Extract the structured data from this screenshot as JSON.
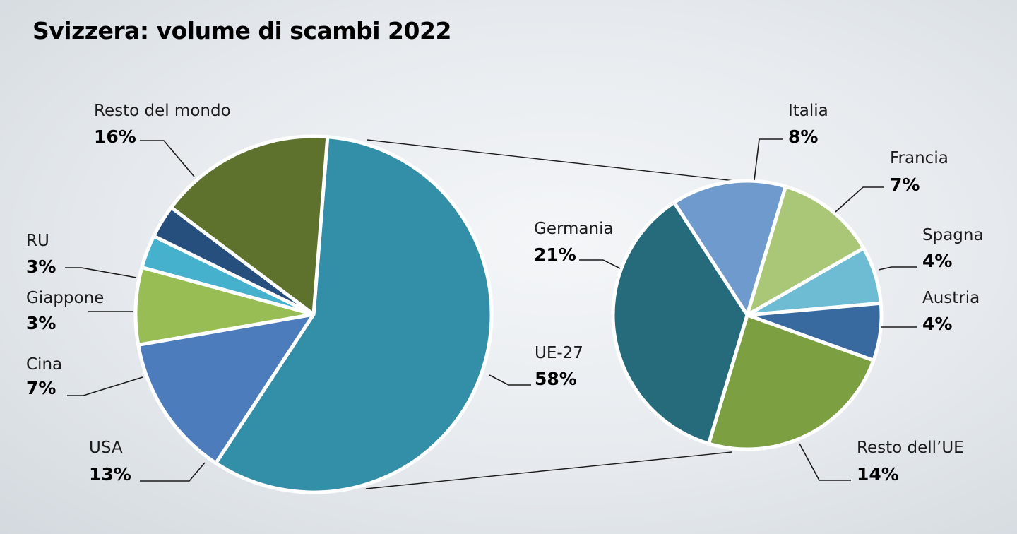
{
  "title": "Svizzera: volume di scambi 2022",
  "chart_data": [
    {
      "type": "pie",
      "slices": [
        {
          "name": "UE-27",
          "value": 58,
          "label": "58%",
          "color": "#338ea7"
        },
        {
          "name": "USA",
          "value": 13,
          "label": "13%",
          "color": "#4c7cbb"
        },
        {
          "name": "Cina",
          "value": 7,
          "label": "7%",
          "color": "#98bd55"
        },
        {
          "name": "Giappone",
          "value": 3,
          "label": "3%",
          "color": "#46b1cd"
        },
        {
          "name": "RU",
          "value": 3,
          "label": "3%",
          "color": "#264f7e"
        },
        {
          "name": "Resto del mondo",
          "value": 16,
          "label": "16%",
          "color": "#5e722d"
        }
      ]
    },
    {
      "type": "pie",
      "slices": [
        {
          "name": "Italia",
          "value": 8,
          "label": "8%",
          "color": "#6e9acd"
        },
        {
          "name": "Francia",
          "value": 7,
          "label": "7%",
          "color": "#a9c776"
        },
        {
          "name": "Spagna",
          "value": 4,
          "label": "4%",
          "color": "#6dbcd3"
        },
        {
          "name": "Austria",
          "value": 4,
          "label": "4%",
          "color": "#386aa0"
        },
        {
          "name": "Resto dell’UE",
          "value": 14,
          "label": "14%",
          "color": "#7b9f41"
        },
        {
          "name": "Germania",
          "value": 21,
          "label": "21%",
          "color": "#266b7b"
        }
      ]
    }
  ]
}
